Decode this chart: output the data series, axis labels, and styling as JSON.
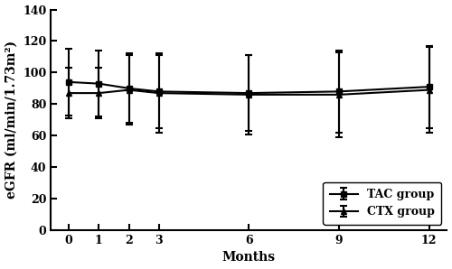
{
  "months": [
    0,
    1,
    2,
    3,
    6,
    9,
    12
  ],
  "tac_mean": [
    94,
    93,
    90,
    88,
    87,
    88,
    91
  ],
  "tac_sd": [
    21,
    21,
    22,
    23,
    24,
    26,
    26
  ],
  "ctx_mean": [
    87,
    87,
    89,
    87,
    86,
    86,
    89
  ],
  "ctx_sd": [
    16,
    16,
    22,
    25,
    25,
    27,
    27
  ],
  "xlabel": "Months",
  "ylabel": "eGFR (ml/min/1.73m²)",
  "ylim": [
    0,
    140
  ],
  "yticks": [
    0,
    20,
    40,
    60,
    80,
    100,
    120,
    140
  ],
  "tac_label": "TAC group",
  "ctx_label": "CTX group",
  "line_color": "#000000",
  "bg_color": "#ffffff",
  "axis_fontsize": 10,
  "legend_fontsize": 9,
  "tick_fontsize": 9
}
